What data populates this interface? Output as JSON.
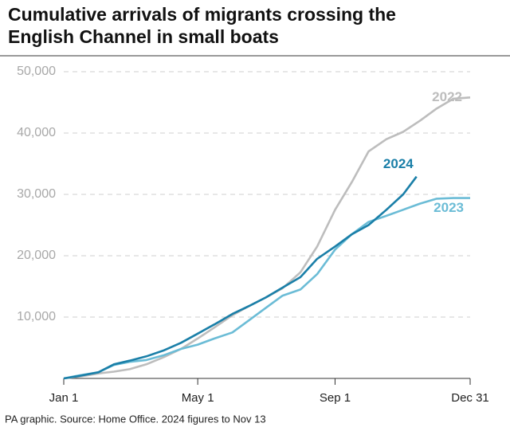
{
  "chart_data": {
    "type": "line",
    "title": "Cumulative arrivals of migrants crossing the English Channel in small boats",
    "note": "PA graphic. Source: Home Office. 2024 figures to Nov 13",
    "xlim": [
      1,
      365
    ],
    "xticks": [
      {
        "value": 1,
        "label": "Jan 1"
      },
      {
        "value": 121,
        "label": "May 1"
      },
      {
        "value": 244,
        "label": "Sep 1"
      },
      {
        "value": 365,
        "label": "Dec 31"
      }
    ],
    "ylim": [
      0,
      50000
    ],
    "yticks": [
      {
        "value": 10000,
        "label": "10,000"
      },
      {
        "value": 20000,
        "label": "20,000"
      },
      {
        "value": 30000,
        "label": "30,000"
      },
      {
        "value": 40000,
        "label": "40,000"
      },
      {
        "value": 50000,
        "label": "50,000"
      }
    ],
    "grid": true,
    "series": [
      {
        "name": "2022",
        "color": "#bdbdbd",
        "x": [
          1,
          15,
          32,
          46,
          60,
          75,
          91,
          106,
          121,
          136,
          152,
          167,
          182,
          197,
          213,
          228,
          244,
          259,
          274,
          290,
          305,
          320,
          335,
          350,
          365
        ],
        "values": [
          0,
          300,
          800,
          1100,
          1500,
          2300,
          3500,
          4800,
          6500,
          8300,
          10300,
          11800,
          13200,
          14700,
          17300,
          21500,
          27500,
          32000,
          37000,
          39000,
          40200,
          42000,
          44000,
          45600,
          45800
        ]
      },
      {
        "name": "2023",
        "color": "#6bbcd6",
        "x": [
          1,
          15,
          32,
          46,
          60,
          75,
          91,
          106,
          121,
          136,
          152,
          167,
          182,
          197,
          213,
          228,
          244,
          259,
          274,
          290,
          305,
          320,
          335,
          350,
          365
        ],
        "values": [
          0,
          500,
          1000,
          2200,
          2700,
          3000,
          3800,
          4800,
          5500,
          6500,
          7500,
          9500,
          11500,
          13500,
          14500,
          17000,
          21000,
          23500,
          25500,
          26500,
          27500,
          28500,
          29300,
          29400,
          29400
        ]
      },
      {
        "name": "2024",
        "color": "#1a7fa8",
        "x": [
          1,
          15,
          32,
          46,
          60,
          75,
          91,
          106,
          121,
          136,
          152,
          167,
          182,
          197,
          213,
          228,
          244,
          259,
          274,
          290,
          305,
          317
        ],
        "values": [
          0,
          400,
          1000,
          2300,
          2900,
          3600,
          4600,
          5800,
          7300,
          8800,
          10500,
          11800,
          13200,
          14800,
          16500,
          19500,
          21500,
          23500,
          25000,
          27500,
          30000,
          32900
        ]
      }
    ]
  }
}
